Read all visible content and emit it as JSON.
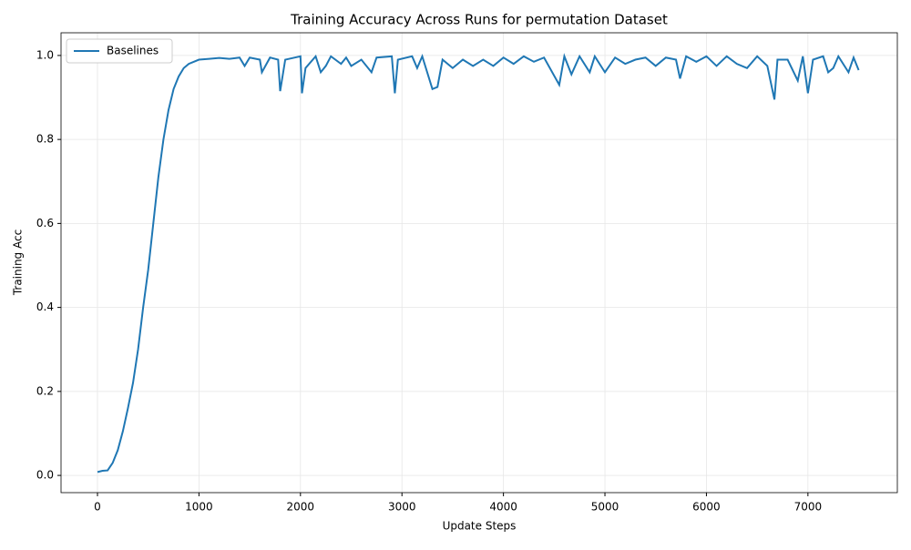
{
  "chart_data": {
    "type": "line",
    "title": "Training Accuracy Across Runs for permutation Dataset",
    "xlabel": "Update Steps",
    "ylabel": "Training Acc",
    "xlim": [
      -359,
      7881
    ],
    "ylim": [
      -0.041,
      1.054
    ],
    "xticks": [
      0,
      1000,
      2000,
      3000,
      4000,
      5000,
      6000,
      7000
    ],
    "yticks": [
      {
        "value": 0,
        "label": "0.0"
      },
      {
        "value": 0.2,
        "label": "0.2"
      },
      {
        "value": 0.4,
        "label": "0.4"
      },
      {
        "value": 0.6,
        "label": "0.6"
      },
      {
        "value": 0.8,
        "label": "0.8"
      },
      {
        "value": 1,
        "label": "1.0"
      }
    ],
    "grid": true,
    "legend": "upper left",
    "x": [
      0,
      50,
      100,
      150,
      200,
      250,
      300,
      350,
      400,
      450,
      500,
      550,
      600,
      650,
      700,
      750,
      800,
      850,
      900,
      1000,
      1100,
      1200,
      1300,
      1400,
      1450,
      1500,
      1600,
      1620,
      1700,
      1780,
      1800,
      1850,
      2000,
      2015,
      2050,
      2150,
      2200,
      2250,
      2300,
      2400,
      2450,
      2500,
      2600,
      2700,
      2750,
      2900,
      2930,
      2960,
      3100,
      3150,
      3200,
      3300,
      3350,
      3400,
      3500,
      3600,
      3700,
      3800,
      3900,
      4000,
      4100,
      4200,
      4300,
      4400,
      4550,
      4600,
      4670,
      4750,
      4850,
      4900,
      5000,
      5100,
      5200,
      5300,
      5400,
      5500,
      5600,
      5700,
      5740,
      5800,
      5900,
      6000,
      6100,
      6200,
      6300,
      6400,
      6500,
      6600,
      6670,
      6700,
      6800,
      6900,
      6950,
      7000,
      7050,
      7150,
      7200,
      7250,
      7300,
      7400,
      7450,
      7500
    ],
    "series": [
      {
        "name": "Baselines",
        "color": "#1f77b4",
        "values": [
          0.008,
          0.011,
          0.012,
          0.03,
          0.06,
          0.105,
          0.16,
          0.22,
          0.3,
          0.4,
          0.49,
          0.6,
          0.71,
          0.8,
          0.87,
          0.92,
          0.95,
          0.97,
          0.98,
          0.99,
          0.992,
          0.994,
          0.992,
          0.995,
          0.975,
          0.995,
          0.99,
          0.96,
          0.995,
          0.99,
          0.915,
          0.99,
          0.998,
          0.91,
          0.97,
          0.998,
          0.96,
          0.975,
          0.998,
          0.98,
          0.995,
          0.975,
          0.99,
          0.96,
          0.995,
          0.998,
          0.91,
          0.99,
          0.998,
          0.97,
          0.998,
          0.92,
          0.925,
          0.99,
          0.97,
          0.99,
          0.975,
          0.99,
          0.975,
          0.995,
          0.98,
          0.998,
          0.985,
          0.995,
          0.93,
          0.998,
          0.955,
          0.998,
          0.96,
          0.998,
          0.96,
          0.995,
          0.98,
          0.99,
          0.995,
          0.975,
          0.995,
          0.99,
          0.945,
          0.998,
          0.985,
          0.998,
          0.975,
          0.998,
          0.98,
          0.97,
          0.998,
          0.975,
          0.895,
          0.99,
          0.99,
          0.94,
          0.998,
          0.91,
          0.99,
          0.998,
          0.96,
          0.97,
          0.998,
          0.96,
          0.995,
          0.965
        ]
      }
    ]
  }
}
